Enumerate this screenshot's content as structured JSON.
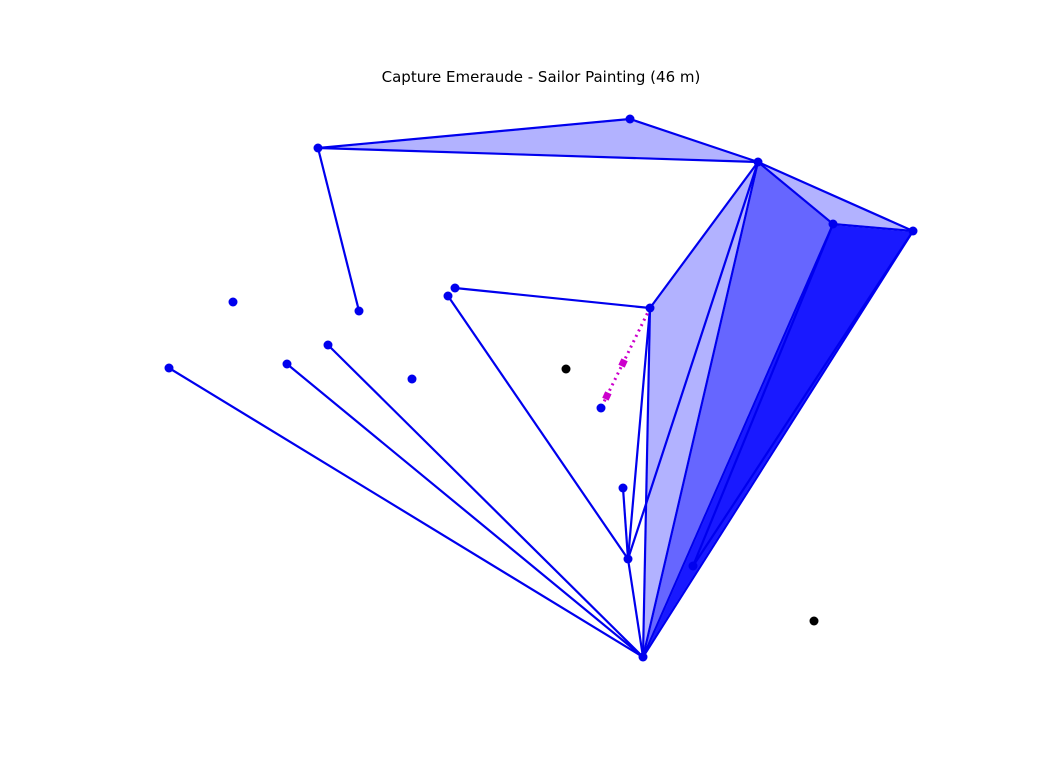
{
  "title": "Capture Emeraude - Sailor Painting (46 m)",
  "colors": {
    "portal": "#0000ee",
    "field_fill": "#0000ff",
    "unowned_portal": "#000000",
    "planned_link": "#cc00cc"
  },
  "portals": [
    {
      "id": "p0",
      "lat": 119,
      "lng": 630,
      "owned": true
    },
    {
      "id": "p1",
      "lat": 148,
      "lng": 318,
      "owned": true
    },
    {
      "id": "p2",
      "lat": 162,
      "lng": 758,
      "owned": true
    },
    {
      "id": "p3",
      "lat": 224,
      "lng": 833,
      "owned": true
    },
    {
      "id": "p4",
      "lat": 231,
      "lng": 913,
      "owned": true
    },
    {
      "id": "p5",
      "lat": 288,
      "lng": 455,
      "owned": true
    },
    {
      "id": "p6",
      "lat": 296,
      "lng": 448,
      "owned": true
    },
    {
      "id": "p7",
      "lat": 302,
      "lng": 233,
      "owned": true
    },
    {
      "id": "p8",
      "lat": 308,
      "lng": 650,
      "owned": true
    },
    {
      "id": "p9",
      "lat": 311,
      "lng": 359,
      "owned": true
    },
    {
      "id": "p10",
      "lat": 345,
      "lng": 328,
      "owned": true
    },
    {
      "id": "p11",
      "lat": 364,
      "lng": 287,
      "owned": true
    },
    {
      "id": "p12",
      "lat": 368,
      "lng": 169,
      "owned": true
    },
    {
      "id": "p13",
      "lat": 379,
      "lng": 412,
      "owned": true
    },
    {
      "id": "p14",
      "lat": 408,
      "lng": 601,
      "owned": true
    },
    {
      "id": "p15",
      "lat": 488,
      "lng": 623,
      "owned": true
    },
    {
      "id": "p16",
      "lat": 559,
      "lng": 628,
      "owned": true
    },
    {
      "id": "p17",
      "lat": 566,
      "lng": 693,
      "owned": true
    },
    {
      "id": "p18",
      "lat": 657,
      "lng": 643,
      "owned": true
    },
    {
      "id": "u0",
      "lat": 369,
      "lng": 566,
      "owned": false
    },
    {
      "id": "u1",
      "lat": 621,
      "lng": 814,
      "owned": false
    }
  ],
  "links": [
    [
      "p1",
      "p0"
    ],
    [
      "p0",
      "p2"
    ],
    [
      "p1",
      "p2"
    ],
    [
      "p1",
      "p9"
    ],
    [
      "p2",
      "p3"
    ],
    [
      "p2",
      "p4"
    ],
    [
      "p3",
      "p4"
    ],
    [
      "p2",
      "p8"
    ],
    [
      "p2",
      "p16"
    ],
    [
      "p2",
      "p18"
    ],
    [
      "p5",
      "p8"
    ],
    [
      "p8",
      "p16"
    ],
    [
      "p8",
      "p18"
    ],
    [
      "p6",
      "p16"
    ],
    [
      "p15",
      "p16"
    ],
    [
      "p16",
      "p18"
    ],
    [
      "p3",
      "p17"
    ],
    [
      "p3",
      "p18"
    ],
    [
      "p4",
      "p17"
    ],
    [
      "p4",
      "p18"
    ],
    [
      "p12",
      "p18"
    ],
    [
      "p11",
      "p18"
    ],
    [
      "p10",
      "p18"
    ]
  ],
  "fields": [
    {
      "vertices": [
        "p1",
        "p0",
        "p2"
      ],
      "layers": 1
    },
    {
      "vertices": [
        "p2",
        "p3",
        "p4"
      ],
      "layers": 1
    },
    {
      "vertices": [
        "p8",
        "p2",
        "p18"
      ],
      "layers": 1
    },
    {
      "vertices": [
        "p2",
        "p3",
        "p18"
      ],
      "layers": 2
    },
    {
      "vertices": [
        "p3",
        "p4",
        "p18"
      ],
      "layers": 3
    }
  ],
  "planned_link": {
    "from": "p8",
    "to": "p14"
  }
}
